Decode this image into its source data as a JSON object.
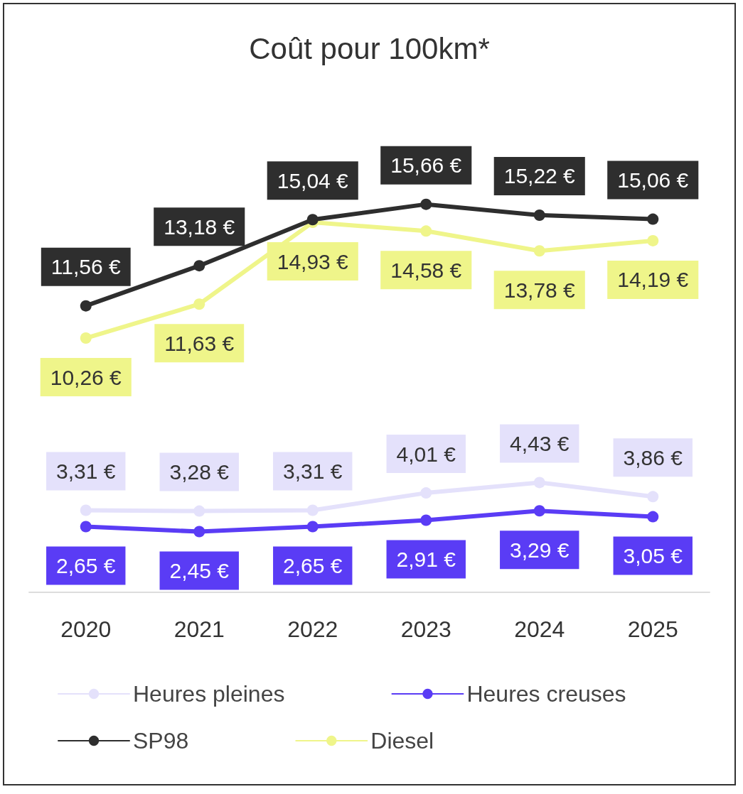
{
  "chart_data": {
    "type": "line",
    "title": "Coût pour 100km*",
    "categories": [
      "2020",
      "2021",
      "2022",
      "2023",
      "2024",
      "2025"
    ],
    "series": [
      {
        "name": "Heures pleines",
        "color": "#e4e1fb",
        "values": [
          3.31,
          3.28,
          3.31,
          4.01,
          4.43,
          3.86
        ],
        "value_labels": [
          "3,31 €",
          "3,28 €",
          "3,31 €",
          "4,01 €",
          "4,43 €",
          "3,86 €"
        ]
      },
      {
        "name": "Heures creuses",
        "color": "#5a3cf5",
        "values": [
          2.65,
          2.45,
          2.65,
          2.91,
          3.29,
          3.05
        ],
        "value_labels": [
          "2,65 €",
          "2,45 €",
          "2,65 €",
          "2,91 €",
          "3,29 €",
          "3,05 €"
        ]
      },
      {
        "name": "SP98",
        "color": "#2e2e2e",
        "values": [
          11.56,
          13.18,
          15.04,
          15.66,
          15.22,
          15.06
        ],
        "value_labels": [
          "11,56 €",
          "13,18 €",
          "15,04 €",
          "15,66 €",
          "15,22 €",
          "15,06 €"
        ]
      },
      {
        "name": "Diesel",
        "color": "#eff58a",
        "values": [
          10.26,
          11.63,
          14.93,
          14.58,
          13.78,
          14.19
        ],
        "value_labels": [
          "10,26 €",
          "11,63 €",
          "14,93 €",
          "14,58 €",
          "13,78 €",
          "14,19 €"
        ]
      }
    ],
    "marker": "circle",
    "grid": false,
    "legend": "bottom"
  }
}
